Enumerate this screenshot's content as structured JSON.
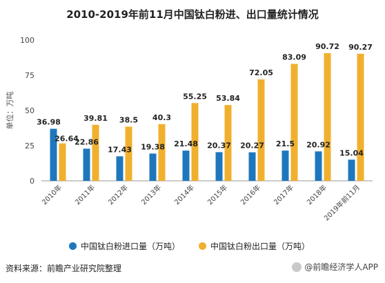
{
  "chart_data": {
    "type": "bar",
    "title": "2010-2019年前11月中国钛白粉进、出口量统计情况",
    "ylabel": "单位：万吨",
    "xlabel": "",
    "ylim": [
      0,
      100
    ],
    "yticks": [
      0,
      25,
      50,
      75,
      100
    ],
    "grid": false,
    "legend_position": "bottom",
    "categories": [
      "2010年",
      "2011年",
      "2012年",
      "2013年",
      "2014年",
      "2015年",
      "2016年",
      "2017年",
      "2018年",
      "2019年前11月"
    ],
    "series": [
      {
        "name": "中国钛白粉进口量（万吨）",
        "color": "#1e77bd",
        "values": [
          36.98,
          22.86,
          17.43,
          19.38,
          21.48,
          20.37,
          20.27,
          21.5,
          20.92,
          15.04
        ]
      },
      {
        "name": "中国钛白粉出口量（万吨）",
        "color": "#f0b02e",
        "values": [
          26.64,
          39.81,
          38.5,
          40.3,
          55.25,
          53.84,
          72.05,
          83.09,
          90.72,
          90.27
        ]
      }
    ]
  },
  "source_text": "资料来源：前瞻产业研究院整理",
  "watermark_text": "@前瞻经济学人APP"
}
